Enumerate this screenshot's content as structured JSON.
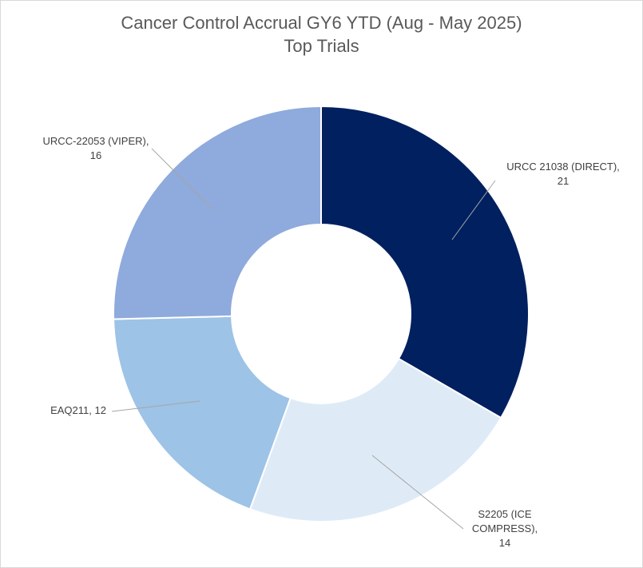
{
  "chart_data": {
    "type": "pie",
    "donut": true,
    "title": "Cancer Control Accrual GY6 YTD (Aug - May 2025)",
    "subtitle": "Top  Trials",
    "legend": "none",
    "slices": [
      {
        "label": "URCC 21038 (DIRECT)",
        "value": 21,
        "color": "#002060",
        "display": [
          "URCC 21038 (DIRECT),",
          "21"
        ]
      },
      {
        "label": "S2205 (ICE COMPRESS)",
        "value": 14,
        "color": "#DEEBF7",
        "display": [
          "S2205 (ICE",
          "COMPRESS),",
          "14"
        ]
      },
      {
        "label": "EAQ211",
        "value": 12,
        "color": "#9DC3E6",
        "display": [
          "EAQ211, 12"
        ]
      },
      {
        "label": "URCC-22053 (VIPER)",
        "value": 16,
        "color": "#8FAADC",
        "display": [
          "URCC-22053 (VIPER),",
          "16"
        ]
      }
    ]
  }
}
